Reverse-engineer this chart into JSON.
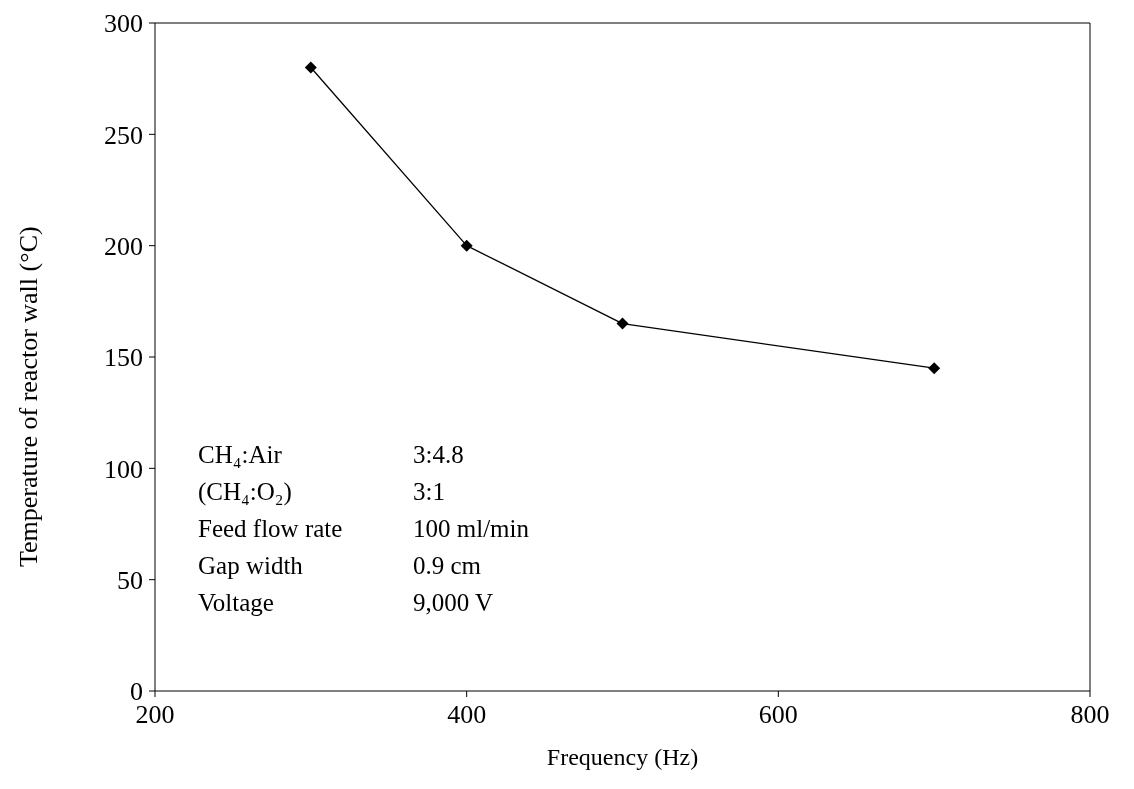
{
  "chart_data": {
    "type": "line",
    "xlabel": "Frequency (Hz)",
    "ylabel": "Temperature of reactor wall (°C)",
    "x": [
      300,
      400,
      500,
      700
    ],
    "series": [
      {
        "color": "#000000",
        "values": [
          280,
          200,
          165,
          145
        ]
      }
    ],
    "xlim": [
      200,
      800
    ],
    "xticks": [
      200,
      400,
      600,
      800
    ],
    "ylim": [
      0,
      300
    ],
    "yticks": [
      0,
      50,
      100,
      150,
      200,
      250,
      300
    ],
    "marker": "diamond",
    "line_style": "solid",
    "grid": false,
    "legend": false,
    "annotations": [
      "CH₄:Air",
      "3:4.8",
      "(CH₄:O₂)",
      "3:1",
      "Feed flow rate",
      "100 ml/min",
      "Gap width",
      "0.9 cm",
      "Voltage",
      "9,000 V"
    ]
  }
}
